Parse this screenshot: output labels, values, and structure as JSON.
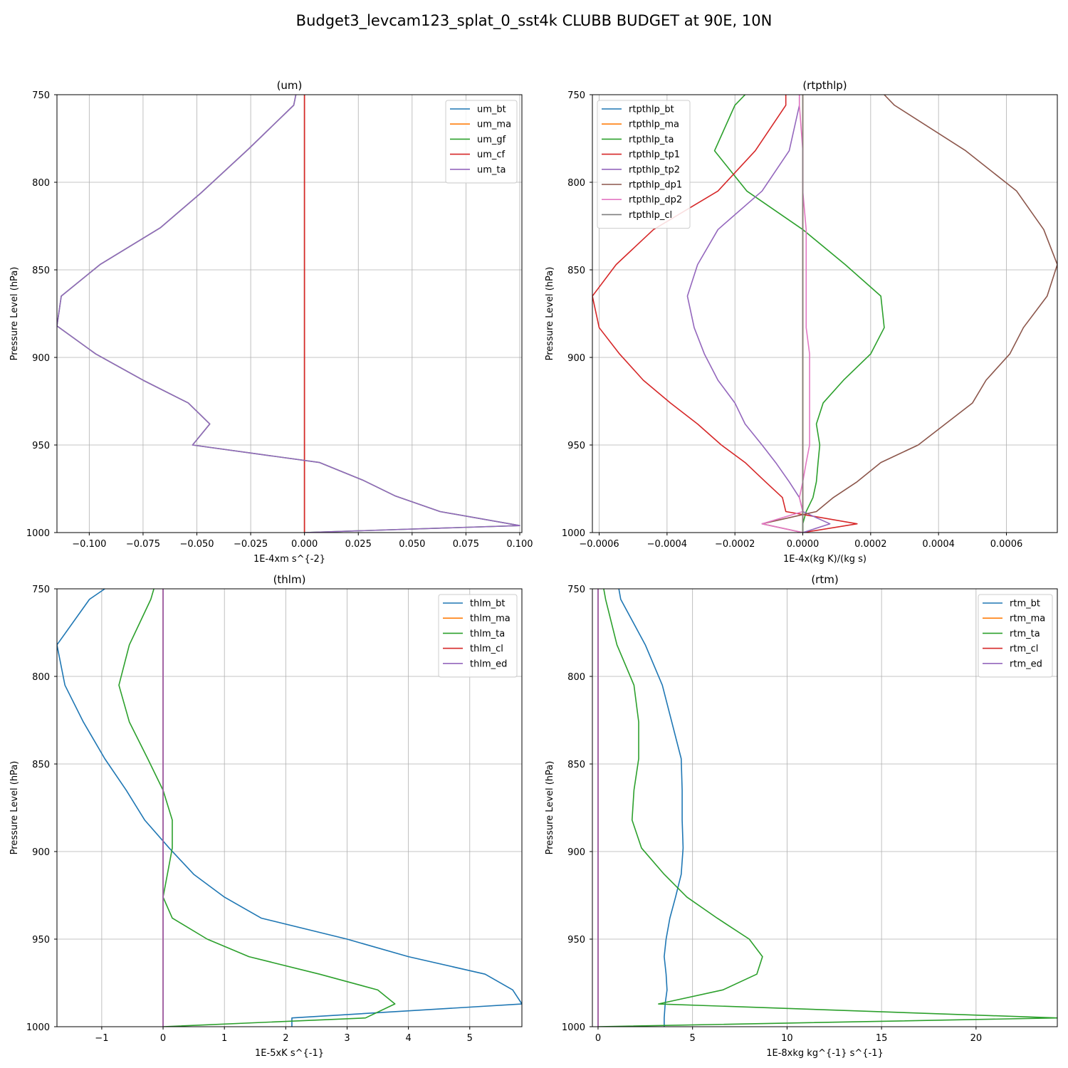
{
  "figure": {
    "title": "Budget3_levcam123_splat_0_sst4k CLUBB BUDGET at 90E, 10N"
  },
  "chart_data": [
    {
      "type": "line",
      "title": "(um)",
      "xlabel": "1E-4xm s^{-2}",
      "ylabel": "Pressure Level (hPa)",
      "xlim": [
        -0.115,
        0.101
      ],
      "ylim": [
        1000,
        750
      ],
      "xticks": [
        -0.1,
        -0.075,
        -0.05,
        -0.025,
        0.0,
        0.025,
        0.05,
        0.075,
        0.1
      ],
      "xticklabels": [
        "−0.100",
        "−0.075",
        "−0.050",
        "−0.025",
        "0.000",
        "0.025",
        "0.050",
        "0.075",
        "0.100"
      ],
      "yticks": [
        750,
        800,
        850,
        900,
        950,
        1000
      ],
      "yticklabels": [
        "750",
        "800",
        "850",
        "900",
        "950",
        "1000"
      ],
      "legend_position": "top-right",
      "levels": [
        750,
        756,
        781,
        806,
        826,
        847,
        865,
        882,
        898,
        913,
        926,
        938,
        950,
        960,
        970,
        979,
        988,
        996,
        1000
      ],
      "series": [
        {
          "name": "um_bt",
          "color": "#1f77b4",
          "values": [
            0,
            0,
            0,
            0,
            0,
            0,
            0,
            0,
            0,
            0,
            0,
            0,
            0,
            0,
            0,
            0,
            0,
            0,
            0
          ]
        },
        {
          "name": "um_ma",
          "color": "#ff7f0e",
          "values": [
            0,
            0,
            0,
            0,
            0,
            0,
            0,
            0,
            0,
            0,
            0,
            0,
            0,
            0,
            0,
            0,
            0,
            0,
            0
          ]
        },
        {
          "name": "um_gf",
          "color": "#2ca02c",
          "values": [
            -0.004,
            -0.005,
            -0.026,
            -0.048,
            -0.067,
            -0.095,
            -0.113,
            -0.115,
            -0.097,
            -0.075,
            -0.054,
            -0.044,
            -0.052,
            0.007,
            0.027,
            0.042,
            0.063,
            0.1,
            0.0
          ]
        },
        {
          "name": "um_cf",
          "color": "#d62728",
          "values": [
            0,
            0,
            0,
            0,
            0,
            0,
            0,
            0,
            0,
            0,
            0,
            0,
            0,
            0,
            0,
            0,
            0,
            0,
            0
          ]
        },
        {
          "name": "um_ta",
          "color": "#9467bd",
          "values": [
            -0.004,
            -0.005,
            -0.026,
            -0.048,
            -0.067,
            -0.095,
            -0.113,
            -0.115,
            -0.097,
            -0.075,
            -0.054,
            -0.044,
            -0.052,
            0.007,
            0.027,
            0.042,
            0.063,
            0.1,
            0.0
          ]
        }
      ]
    },
    {
      "type": "line",
      "title": "(rtpthlp)",
      "xlabel": "1E-4x(kg K)/(kg s)",
      "ylabel": "Pressure Level (hPa)",
      "xlim": [
        -0.00062,
        0.00075
      ],
      "ylim": [
        1000,
        750
      ],
      "xticks": [
        -0.0006,
        -0.0004,
        -0.0002,
        0.0,
        0.0002,
        0.0004,
        0.0006
      ],
      "xticklabels": [
        "−0.0006",
        "−0.0004",
        "−0.0002",
        "0.0000",
        "0.0002",
        "0.0004",
        "0.0006"
      ],
      "yticks": [
        750,
        800,
        850,
        900,
        950,
        1000
      ],
      "yticklabels": [
        "750",
        "800",
        "850",
        "900",
        "950",
        "1000"
      ],
      "legend_position": "top-left",
      "levels": [
        750,
        756,
        782,
        805,
        827,
        847,
        865,
        883,
        898,
        913,
        926,
        938,
        950,
        960,
        971,
        980,
        988,
        995,
        1000
      ],
      "series": [
        {
          "name": "rtpthlp_bt",
          "color": "#1f77b4",
          "values": [
            0,
            0,
            0,
            0,
            0,
            0,
            0,
            0,
            0,
            0,
            0,
            0,
            0,
            0,
            0,
            0,
            0,
            0,
            0
          ]
        },
        {
          "name": "rtpthlp_ma",
          "color": "#ff7f0e",
          "values": [
            0,
            0,
            0,
            0,
            0,
            0,
            0,
            0,
            0,
            0,
            0,
            0,
            0,
            0,
            0,
            0,
            0,
            0,
            0
          ]
        },
        {
          "name": "rtpthlp_ta",
          "color": "#2ca02c",
          "values": [
            -0.00017,
            -0.0002,
            -0.00026,
            -0.000165,
            0.0,
            0.000125,
            0.00023,
            0.00024,
            0.0002,
            0.00012,
            6e-05,
            4e-05,
            5e-05,
            4.5e-05,
            4e-05,
            3e-05,
            1e-05,
            0.0,
            0.0
          ]
        },
        {
          "name": "rtpthlp_tp1",
          "color": "#d62728",
          "values": [
            -5e-05,
            -5e-05,
            -0.00014,
            -0.00025,
            -0.00044,
            -0.00055,
            -0.00062,
            -0.0006,
            -0.00054,
            -0.00047,
            -0.00039,
            -0.00031,
            -0.00024,
            -0.00017,
            -0.00011,
            -6e-05,
            -5e-05,
            0.00016,
            0.0
          ]
        },
        {
          "name": "rtpthlp_tp2",
          "color": "#9467bd",
          "values": [
            -1e-05,
            -1e-05,
            -4e-05,
            -0.00012,
            -0.00025,
            -0.00031,
            -0.00034,
            -0.00032,
            -0.00029,
            -0.00025,
            -0.0002,
            -0.00017,
            -0.00012,
            -8e-05,
            -4e-05,
            -1e-05,
            0.0,
            8e-05,
            0.0
          ]
        },
        {
          "name": "rtpthlp_dp1",
          "color": "#8c564b",
          "values": [
            0.00024,
            0.00027,
            0.00048,
            0.00063,
            0.00071,
            0.00075,
            0.00072,
            0.00065,
            0.00061,
            0.00054,
            0.0005,
            0.00042,
            0.00034,
            0.00023,
            0.00016,
            9e-05,
            4e-05,
            -0.00012,
            0.0
          ]
        },
        {
          "name": "rtpthlp_dp2",
          "color": "#e377c2",
          "values": [
            -1e-05,
            -1e-05,
            0.0,
            0.0,
            1e-05,
            1e-05,
            1e-05,
            1e-05,
            2e-05,
            2e-05,
            2e-05,
            2e-05,
            2e-05,
            1e-05,
            0.0,
            -1e-05,
            0.0,
            -0.00012,
            0.0
          ]
        },
        {
          "name": "rtpthlp_cl",
          "color": "#7f7f7f",
          "values": [
            0,
            0,
            0,
            0,
            0,
            0,
            0,
            0,
            0,
            0,
            0,
            0,
            0,
            0,
            0,
            0,
            0,
            0,
            0
          ]
        }
      ]
    },
    {
      "type": "line",
      "title": "(thlm)",
      "xlabel": "1E-5xK s^{-1}",
      "ylabel": "Pressure Level (hPa)",
      "xlim": [
        -1.73,
        5.85
      ],
      "ylim": [
        1000,
        750
      ],
      "xticks": [
        -1,
        0,
        1,
        2,
        3,
        4,
        5
      ],
      "xticklabels": [
        "−1",
        "0",
        "1",
        "2",
        "3",
        "4",
        "5"
      ],
      "yticks": [
        750,
        800,
        850,
        900,
        950,
        1000
      ],
      "yticklabels": [
        "750",
        "800",
        "850",
        "900",
        "950",
        "1000"
      ],
      "legend_position": "top-right",
      "levels": [
        750,
        756,
        782,
        805,
        826,
        847,
        865,
        882,
        898,
        913,
        926,
        938,
        950,
        960,
        970,
        979,
        987,
        995,
        1000
      ],
      "series": [
        {
          "name": "thlm_bt",
          "color": "#1f77b4",
          "values": [
            -0.95,
            -1.2,
            -1.73,
            -1.6,
            -1.3,
            -0.95,
            -0.6,
            -0.3,
            0.1,
            0.5,
            1.0,
            1.6,
            3.0,
            4.0,
            5.25,
            5.7,
            5.85,
            2.1,
            2.1
          ]
        },
        {
          "name": "thlm_ma",
          "color": "#ff7f0e",
          "values": [
            0,
            0,
            0,
            0,
            0,
            0,
            0,
            0,
            0,
            0,
            0,
            0,
            0,
            0,
            0,
            0,
            0,
            0,
            0
          ]
        },
        {
          "name": "thlm_ta",
          "color": "#2ca02c",
          "values": [
            -0.15,
            -0.2,
            -0.55,
            -0.72,
            -0.55,
            -0.25,
            0.0,
            0.15,
            0.15,
            0.07,
            0.0,
            0.15,
            0.72,
            1.4,
            2.55,
            3.5,
            3.78,
            3.3,
            0.0
          ]
        },
        {
          "name": "thlm_cl",
          "color": "#d62728",
          "values": [
            0,
            0,
            0,
            0,
            0,
            0,
            0,
            0,
            0,
            0,
            0,
            0,
            0,
            0,
            0,
            0,
            0,
            0,
            0
          ]
        },
        {
          "name": "thlm_ed",
          "color": "#9467bd",
          "values": [
            0,
            0,
            0,
            0,
            0,
            0,
            0,
            0,
            0,
            0,
            0,
            0,
            0,
            0,
            0,
            0,
            0,
            0,
            0
          ]
        }
      ]
    },
    {
      "type": "line",
      "title": "(rtm)",
      "xlabel": "1E-8xkg kg^{-1} s^{-1}",
      "ylabel": "Pressure Level (hPa)",
      "xlim": [
        -0.3,
        24.3
      ],
      "ylim": [
        1000,
        750
      ],
      "xticks": [
        0,
        5,
        10,
        15,
        20
      ],
      "xticklabels": [
        "0",
        "5",
        "10",
        "15",
        "20"
      ],
      "yticks": [
        750,
        800,
        850,
        900,
        950,
        1000
      ],
      "yticklabels": [
        "750",
        "800",
        "850",
        "900",
        "950",
        "1000"
      ],
      "legend_position": "top-right",
      "levels": [
        750,
        756,
        782,
        805,
        826,
        847,
        865,
        882,
        898,
        913,
        926,
        938,
        950,
        960,
        970,
        979,
        987,
        995,
        1000
      ],
      "series": [
        {
          "name": "rtm_bt",
          "color": "#1f77b4",
          "values": [
            1.1,
            1.2,
            2.5,
            3.4,
            3.9,
            4.4,
            4.45,
            4.45,
            4.5,
            4.4,
            4.1,
            3.8,
            3.6,
            3.5,
            3.6,
            3.65,
            3.55,
            3.5,
            3.5
          ]
        },
        {
          "name": "rtm_ma",
          "color": "#ff7f0e",
          "values": [
            0,
            0,
            0,
            0,
            0,
            0,
            0,
            0,
            0,
            0,
            0,
            0,
            0,
            0,
            0,
            0,
            0,
            0,
            0
          ]
        },
        {
          "name": "rtm_ta",
          "color": "#2ca02c",
          "values": [
            0.3,
            0.4,
            1.0,
            1.9,
            2.15,
            2.15,
            1.9,
            1.8,
            2.3,
            3.5,
            4.7,
            6.3,
            8.0,
            8.7,
            8.4,
            6.6,
            3.2,
            24.3,
            0.0
          ]
        },
        {
          "name": "rtm_cl",
          "color": "#d62728",
          "values": [
            0,
            0,
            0,
            0,
            0,
            0,
            0,
            0,
            0,
            0,
            0,
            0,
            0,
            0,
            0,
            0,
            0,
            0,
            0
          ]
        },
        {
          "name": "rtm_ed",
          "color": "#9467bd",
          "values": [
            0,
            0,
            0,
            0,
            0,
            0,
            0,
            0,
            0,
            0,
            0,
            0,
            0,
            0,
            0,
            0,
            0,
            0,
            0
          ]
        }
      ]
    }
  ]
}
